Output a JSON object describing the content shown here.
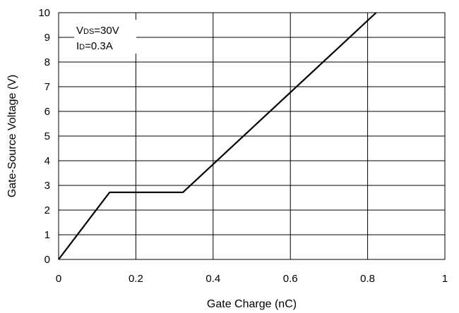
{
  "chart_data": {
    "type": "line",
    "title": "",
    "xlabel": "Gate Charge (nC)",
    "ylabel": "Gate-Source Voltage (V)",
    "xlim": [
      0,
      1
    ],
    "ylim": [
      0,
      10
    ],
    "x_ticks": [
      "0",
      "0.2",
      "0.4",
      "0.6",
      "0.8",
      "1"
    ],
    "y_ticks": [
      "0",
      "1",
      "2",
      "3",
      "4",
      "5",
      "6",
      "7",
      "8",
      "9",
      "10"
    ],
    "grid": true,
    "series": [
      {
        "x": [
          0,
          0.132,
          0.322,
          0.822
        ],
        "y": [
          0,
          2.72,
          2.72,
          10
        ]
      }
    ],
    "annotations": {
      "line1": {
        "main": "V",
        "sub": "DS",
        "rest": "=30V"
      },
      "line2": {
        "main": "I",
        "sub": "D",
        "rest": "=0.3A"
      }
    },
    "line_color": "#000000",
    "grid_color": "#000000"
  }
}
